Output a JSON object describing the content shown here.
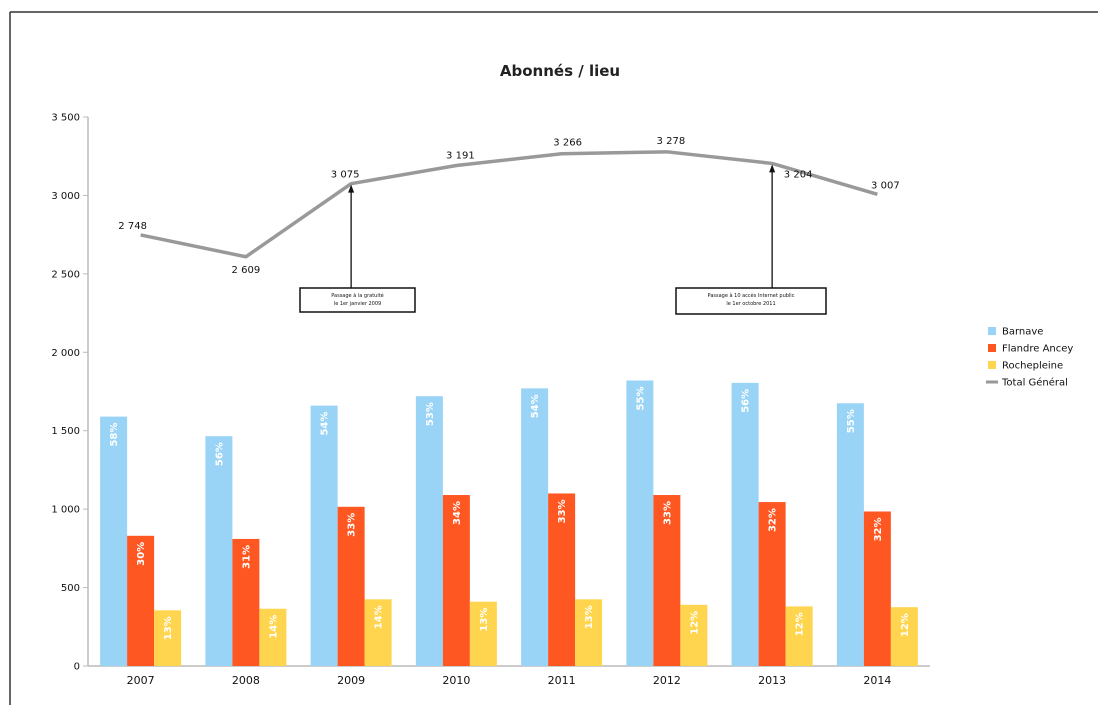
{
  "chart_data": {
    "type": "bar",
    "title": "Abonnés / lieu",
    "categories": [
      "2007",
      "2008",
      "2009",
      "2010",
      "2011",
      "2012",
      "2013",
      "2014"
    ],
    "ylim": [
      0,
      3500
    ],
    "y_ticks": [
      0,
      500,
      1000,
      1500,
      2000,
      2500,
      3000,
      3500
    ],
    "y_tick_labels": [
      "0",
      "500",
      "1 000",
      "1 500",
      "2 000",
      "2 500",
      "3 000",
      "3 500"
    ],
    "grid": false,
    "legend_position": "right",
    "series": [
      {
        "name": "Barnave",
        "kind": "bar",
        "color": "#99d3f5",
        "values": [
          1590,
          1465,
          1660,
          1720,
          1770,
          1820,
          1805,
          1675
        ],
        "labels": [
          "58%",
          "56%",
          "54%",
          "53%",
          "54%",
          "55%",
          "56%",
          "55%"
        ]
      },
      {
        "name": "Flandre Ancey",
        "kind": "bar",
        "color": "#ff5722",
        "values": [
          830,
          810,
          1015,
          1090,
          1100,
          1090,
          1045,
          985
        ],
        "labels": [
          "30%",
          "31%",
          "33%",
          "34%",
          "33%",
          "33%",
          "32%",
          "32%"
        ]
      },
      {
        "name": "Rochepleine",
        "kind": "bar",
        "color": "#ffd54f",
        "values": [
          355,
          365,
          425,
          410,
          425,
          390,
          380,
          375
        ],
        "labels": [
          "13%",
          "14%",
          "14%",
          "13%",
          "13%",
          "12%",
          "12%",
          "12%"
        ]
      },
      {
        "name": "Total Général",
        "kind": "line",
        "color": "#999999",
        "values": [
          2748,
          2609,
          3075,
          3191,
          3266,
          3278,
          3204,
          3007
        ],
        "labels": [
          "2 748",
          "2 609",
          "3 075",
          "3 191",
          "3 266",
          "3 278",
          "3 204",
          "3 007"
        ]
      }
    ],
    "annotations": [
      {
        "text": [
          "Passage à la gratuité",
          "le 1er janvier 2009"
        ],
        "points_to": "2009"
      },
      {
        "text": [
          "Passage à 10 accès Internet public",
          "le 1er octobre 2011"
        ],
        "points_to": "2013"
      }
    ]
  }
}
